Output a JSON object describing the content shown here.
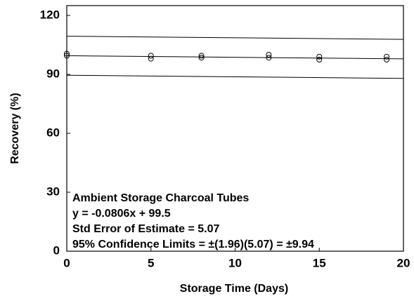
{
  "chart_data": {
    "type": "scatter",
    "xlabel": "Storage Time (Days)",
    "ylabel": "Recovery (%)",
    "xlim": [
      0,
      20
    ],
    "ylim": [
      0,
      125
    ],
    "xticks": [
      0,
      5,
      10,
      15,
      20
    ],
    "yticks": [
      0,
      30,
      60,
      90,
      120
    ],
    "annotations": [
      "Ambient Storage Charcoal Tubes",
      "y = -0.0806x + 99.5",
      "Std Error of Estimate = 5.07",
      "95% Confidence Limits = ±(1.96)(5.07) = ±9.94"
    ],
    "series": [
      {
        "mode": "line",
        "color": "#000000",
        "x": [
          0,
          20
        ],
        "values": [
          109.44,
          107.83
        ]
      },
      {
        "mode": "line",
        "color": "#000000",
        "x": [
          0,
          20
        ],
        "values": [
          99.5,
          97.89
        ]
      },
      {
        "mode": "line",
        "color": "#000000",
        "x": [
          0,
          20
        ],
        "values": [
          89.56,
          87.95
        ]
      },
      {
        "mode": "markers",
        "color": "#000000",
        "x": [
          0,
          0,
          5,
          5,
          8,
          8,
          12,
          12,
          15,
          15,
          19,
          19
        ],
        "values": [
          100.5,
          99.5,
          99.5,
          98,
          99.5,
          98.5,
          100,
          98.5,
          99,
          97.5,
          99,
          97.5
        ]
      }
    ]
  }
}
